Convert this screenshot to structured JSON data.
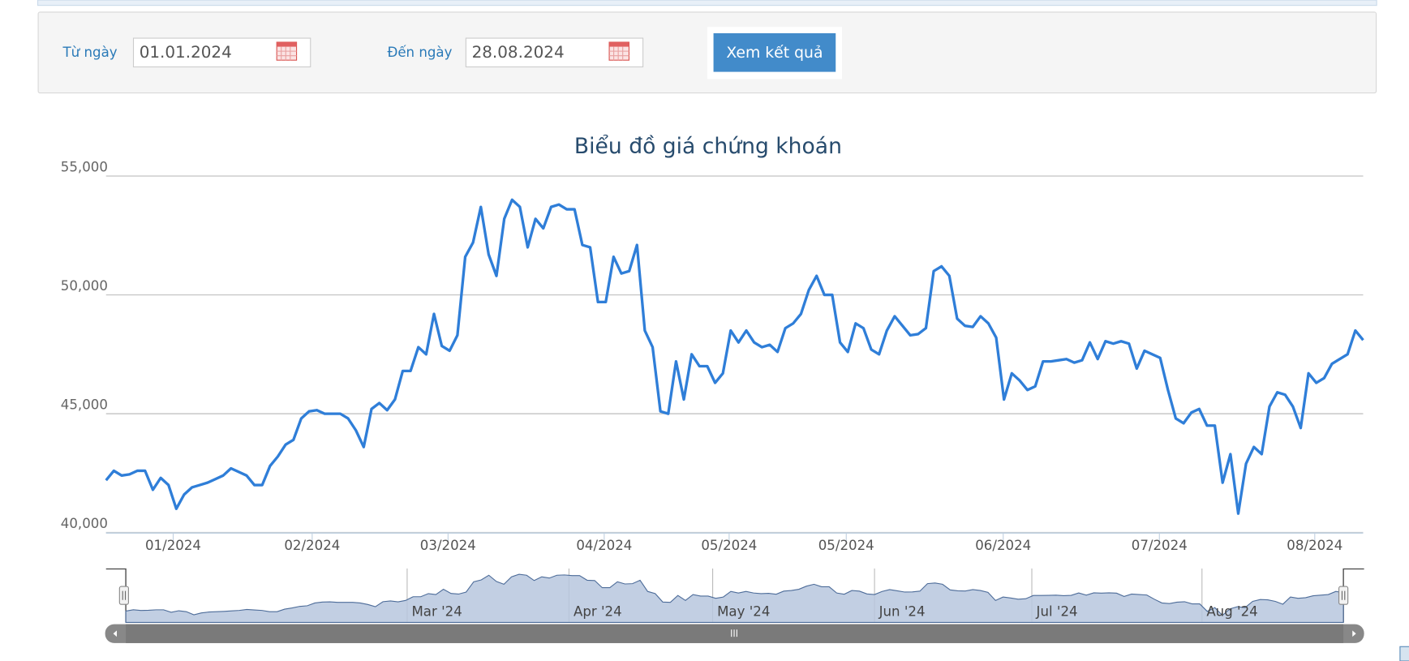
{
  "form": {
    "from_label": "Từ ngày",
    "from_value": "01.01.2024",
    "to_label": "Đến ngày",
    "to_value": "28.08.2024",
    "submit": "Xem kết quả"
  },
  "chart_data": {
    "type": "line",
    "title": "Biểu đồ giá chứng khoán",
    "series": [
      {
        "color": "#2f7ed8",
        "values": [
          42200,
          42600,
          42400,
          42450,
          42600,
          42600,
          41800,
          42300,
          42000,
          41000,
          41600,
          41900,
          42000,
          42100,
          42250,
          42400,
          42700,
          42550,
          42400,
          42000,
          42000,
          42800,
          43200,
          43700,
          43900,
          44800,
          45100,
          45150,
          45000,
          45000,
          45000,
          44800,
          44300,
          43600,
          45200,
          45450,
          45150,
          45600,
          46800,
          46800,
          47800,
          47500,
          49200,
          47850,
          47650,
          48300,
          51600,
          52200,
          53700,
          51700,
          50800,
          53200,
          54000,
          53700,
          52000,
          53200,
          52800,
          53700,
          53800,
          53600,
          53600,
          52100,
          52000,
          49700,
          49700,
          51600,
          50900,
          51000,
          52100,
          48500,
          47800,
          45100,
          45000,
          47200,
          45600,
          47500,
          47000,
          47000,
          46300,
          46700,
          48500,
          48000,
          48500,
          48000,
          47800,
          47900,
          47600,
          48600,
          48800,
          49200,
          50200,
          50800,
          50000,
          50000,
          48000,
          47600,
          48800,
          48600,
          47700,
          47500,
          48500,
          49100,
          48700,
          48300,
          48350,
          48600,
          51000,
          51200,
          50800,
          49000,
          48700,
          48650,
          49100,
          48800,
          48200,
          45600,
          46700,
          46400,
          46000,
          46150,
          47200,
          47200,
          47250,
          47300,
          47150,
          47250,
          48000,
          47300,
          48050,
          47950,
          48050,
          47950,
          46900,
          47650,
          47500,
          47350,
          46000,
          44800,
          44600,
          45050,
          45200,
          44500,
          44500,
          42100,
          43300,
          40800,
          42900,
          43600,
          43300,
          45300,
          45900,
          45800,
          45300,
          44400,
          46700,
          46300,
          46500,
          47100,
          47300,
          47500,
          48500,
          48100
        ]
      }
    ],
    "xlim": [
      0,
      161
    ],
    "xticks": [
      {
        "value": 8.6,
        "label": "01/2024"
      },
      {
        "value": 26.4,
        "label": "02/2024"
      },
      {
        "value": 43.8,
        "label": "03/2024"
      },
      {
        "value": 63.8,
        "label": "04/2024"
      },
      {
        "value": 79.8,
        "label": "05/2024"
      },
      {
        "value": 94.8,
        "label": "05/2024"
      },
      {
        "value": 114.9,
        "label": "06/2024"
      },
      {
        "value": 134.9,
        "label": "07/2024"
      },
      {
        "value": 154.8,
        "label": "08/2024"
      }
    ],
    "ylim": [
      40000,
      55000
    ],
    "yticks": [
      {
        "value": 40000,
        "label": "40,000"
      },
      {
        "value": 45000,
        "label": "45,000"
      },
      {
        "value": 50000,
        "label": "50,000"
      },
      {
        "value": 55000,
        "label": "55,000"
      }
    ],
    "grid": true,
    "navigator": {
      "fill": "#b7c7de",
      "ticks": [
        {
          "value": 37.2,
          "label": "Mar '24"
        },
        {
          "value": 58.6,
          "label": "Apr '24"
        },
        {
          "value": 77.6,
          "label": "May '24"
        },
        {
          "value": 99.0,
          "label": "Jun '24"
        },
        {
          "value": 119.8,
          "label": "Jul '24"
        },
        {
          "value": 142.3,
          "label": "Aug '24"
        }
      ]
    }
  }
}
